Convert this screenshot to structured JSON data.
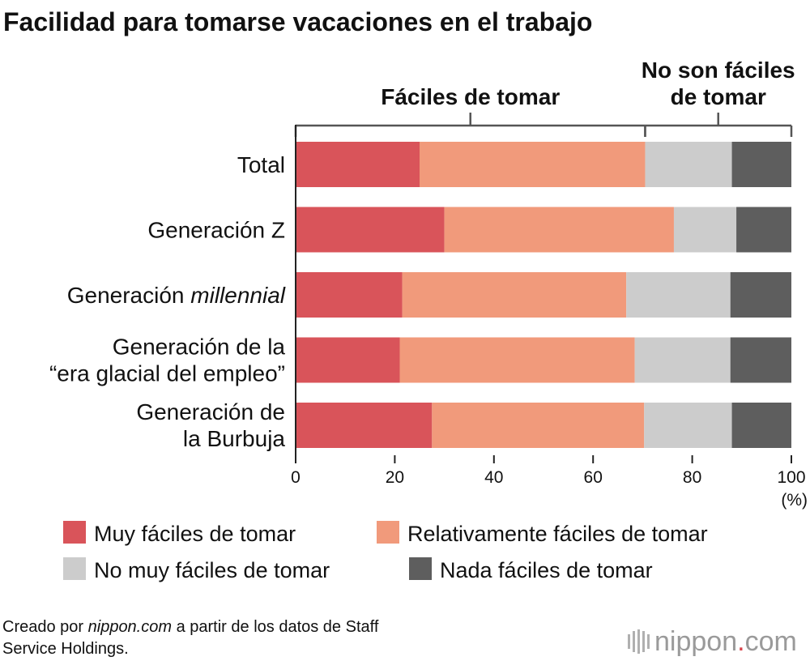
{
  "chart_data": {
    "type": "bar",
    "orientation": "horizontal",
    "stacked": true,
    "title": "Facilidad para tomarse vacaciones en el trabajo",
    "categories": [
      [
        "Total"
      ],
      [
        "Generación Z"
      ],
      [
        "Generación ",
        "millennial"
      ],
      [
        "Generación de la",
        "“era glacial del empleo”"
      ],
      [
        "Generación de",
        "la Burbuja"
      ]
    ],
    "category_italic": [
      null,
      null,
      1,
      null,
      null
    ],
    "series": [
      {
        "name": "Muy fáciles de tomar",
        "color": "#d9545a",
        "values": [
          25,
          30,
          21.5,
          21,
          27.5
        ]
      },
      {
        "name": "Relativamente fáciles de tomar",
        "color": "#f19a7b",
        "values": [
          45.5,
          46.3,
          45.2,
          47.4,
          42.8
        ]
      },
      {
        "name": "No muy fáciles de tomar",
        "color": "#cccccc",
        "values": [
          17.5,
          12.6,
          21,
          19.3,
          17.7
        ]
      },
      {
        "name": "Nada fáciles de tomar",
        "color": "#5e5e5e",
        "values": [
          12,
          11.1,
          12.3,
          12.3,
          12
        ]
      }
    ],
    "xlim": [
      0,
      100
    ],
    "xticks": [
      "0",
      "20",
      "40",
      "60",
      "80",
      "100"
    ],
    "xunit": "(%)",
    "grid": false,
    "legend_position": "bottom",
    "brackets": [
      {
        "lines": [
          "Fáciles de tomar"
        ],
        "from": 0,
        "to": 70.5
      },
      {
        "lines": [
          "No son fáciles",
          "de tomar"
        ],
        "from": 70.5,
        "to": 100
      }
    ]
  },
  "footer": {
    "source_prefix": "Creado por ",
    "source_site": "nippon.com",
    "source_suffix": " a partir de los datos de Staff",
    "source_line2": "Service Holdings."
  },
  "brand": {
    "name": "nippon",
    "dot": ".",
    "tld": "com"
  }
}
